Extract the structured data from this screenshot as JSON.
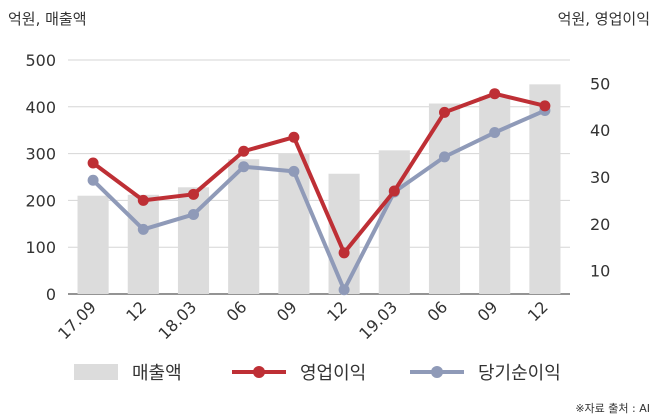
{
  "chart_data": {
    "type": "bar",
    "left_axis_title": "억원, 매출액",
    "right_axis_title": "억원, 영업이익",
    "categories": [
      "17.09",
      "12",
      "18.03",
      "06",
      "09",
      "12",
      "19.03",
      "06",
      "09",
      "12"
    ],
    "left_axis": {
      "ylim": [
        0,
        500
      ],
      "ticks": [
        0,
        100,
        200,
        300,
        400,
        500
      ]
    },
    "right_axis": {
      "ylim": [
        5,
        55
      ],
      "ticks": [
        10,
        20,
        30,
        40,
        50
      ]
    },
    "grid": true,
    "legend_position": "bottom",
    "series": [
      {
        "name": "매출액",
        "type": "bar",
        "axis": "left",
        "color": "#dcdcdc",
        "values": [
          210,
          212,
          228,
          288,
          300,
          257,
          307,
          407,
          422,
          448
        ]
      },
      {
        "name": "영업이익",
        "type": "line",
        "axis": "right",
        "color": "#be2f35",
        "values": [
          33,
          25,
          26.3,
          35.5,
          38.5,
          13.8,
          27,
          43.8,
          47.8,
          45.2
        ]
      },
      {
        "name": "당기순이익",
        "type": "line",
        "axis": "right",
        "color": "#8f9ab8",
        "values": [
          29.3,
          18.8,
          22,
          32.2,
          31.2,
          5.9,
          26.8,
          34.3,
          39.5,
          44.2
        ]
      }
    ]
  },
  "source_note": "※자료 출처 : AI"
}
